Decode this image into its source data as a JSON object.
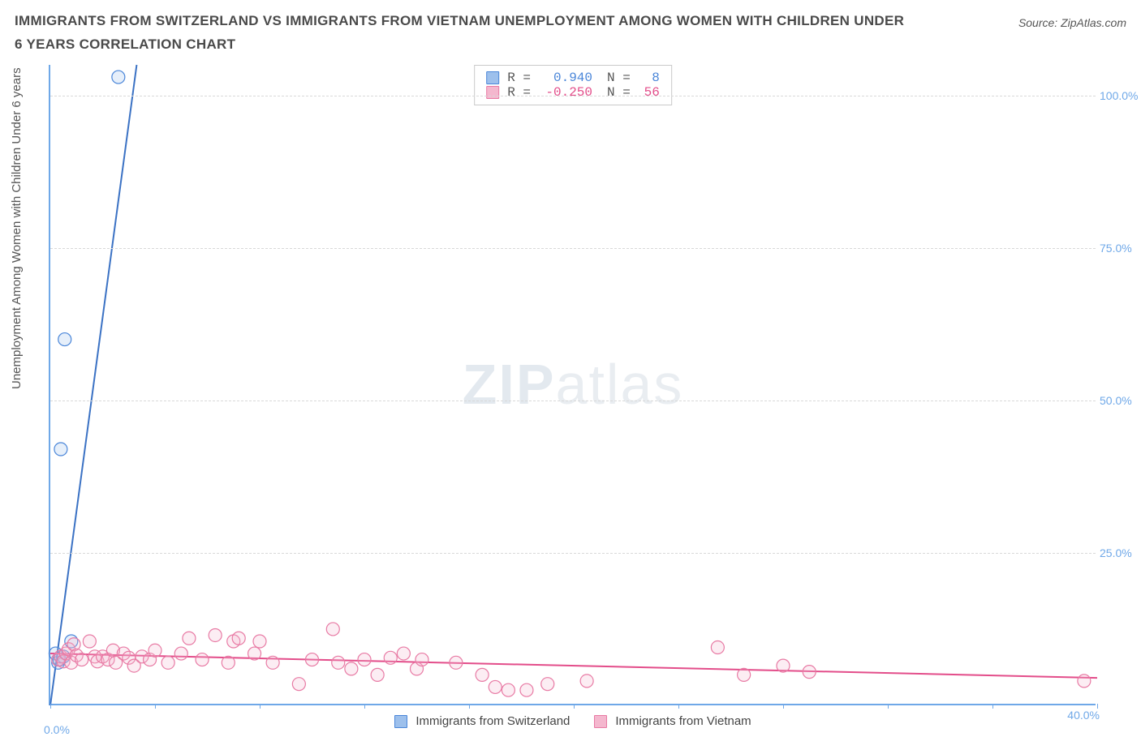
{
  "title": "IMMIGRANTS FROM SWITZERLAND VS IMMIGRANTS FROM VIETNAM UNEMPLOYMENT AMONG WOMEN WITH CHILDREN UNDER 6 YEARS CORRELATION CHART",
  "source_label": "Source: ZipAtlas.com",
  "y_axis_label": "Unemployment Among Women with Children Under 6 years",
  "watermark": {
    "bold": "ZIP",
    "light": "atlas"
  },
  "chart": {
    "type": "scatter-with-trendlines",
    "background_color": "#ffffff",
    "axis_color": "#6fa8e8",
    "grid_color": "#d9d9d9",
    "grid_dash": "4,4",
    "xlim": [
      0,
      40
    ],
    "ylim": [
      0,
      105
    ],
    "x_ticks": [
      0,
      4,
      8,
      12,
      16,
      20,
      24,
      28,
      32,
      36,
      40
    ],
    "x_tick_labels": {
      "0": "0.0%",
      "40": "40.0%"
    },
    "y_ticks": [
      25,
      50,
      75,
      100
    ],
    "y_tick_labels": {
      "25": "25.0%",
      "50": "50.0%",
      "75": "75.0%",
      "100": "100.0%"
    },
    "tick_label_color": "#6fa8e8",
    "tick_label_fontsize": 14,
    "marker_radius": 8,
    "marker_stroke_width": 1.2,
    "marker_fill_opacity": 0.25,
    "trend_line_width": 2,
    "series": [
      {
        "id": "switzerland",
        "label": "Immigrants from Switzerland",
        "stroke": "#4a86d9",
        "fill": "#9dc0ec",
        "line_color": "#3b72c4",
        "stats": {
          "R": "0.940",
          "N": "8"
        },
        "trend": {
          "x1": 0,
          "y1": 0,
          "x2": 3.3,
          "y2": 105
        },
        "points": [
          [
            0.2,
            8.5
          ],
          [
            0.3,
            7.0
          ],
          [
            0.35,
            7.5
          ],
          [
            0.5,
            8.0
          ],
          [
            0.8,
            10.5
          ],
          [
            0.4,
            42.0
          ],
          [
            0.55,
            60.0
          ],
          [
            2.6,
            103.0
          ]
        ]
      },
      {
        "id": "vietnam",
        "label": "Immigrants from Vietnam",
        "stroke": "#e87aa4",
        "fill": "#f4b7ce",
        "line_color": "#e34d8a",
        "stats": {
          "R": "-0.250",
          "N": "56"
        },
        "trend": {
          "x1": 0,
          "y1": 8.5,
          "x2": 40,
          "y2": 4.5
        },
        "points": [
          [
            0.3,
            7.5
          ],
          [
            0.4,
            8.0
          ],
          [
            0.5,
            7.2
          ],
          [
            0.6,
            8.5
          ],
          [
            0.7,
            9.2
          ],
          [
            0.8,
            7.0
          ],
          [
            0.9,
            10.0
          ],
          [
            1.0,
            8.2
          ],
          [
            1.2,
            7.5
          ],
          [
            1.5,
            10.5
          ],
          [
            1.7,
            8.0
          ],
          [
            1.8,
            7.2
          ],
          [
            2.0,
            8.0
          ],
          [
            2.2,
            7.5
          ],
          [
            2.4,
            9.0
          ],
          [
            2.5,
            7.0
          ],
          [
            2.8,
            8.5
          ],
          [
            3.0,
            7.8
          ],
          [
            3.2,
            6.5
          ],
          [
            3.5,
            8.0
          ],
          [
            3.8,
            7.5
          ],
          [
            4.0,
            9.0
          ],
          [
            4.5,
            7.0
          ],
          [
            5.0,
            8.5
          ],
          [
            5.3,
            11.0
          ],
          [
            5.8,
            7.5
          ],
          [
            6.3,
            11.5
          ],
          [
            6.8,
            7.0
          ],
          [
            7.0,
            10.5
          ],
          [
            7.2,
            11.0
          ],
          [
            7.8,
            8.5
          ],
          [
            8.0,
            10.5
          ],
          [
            8.5,
            7.0
          ],
          [
            9.5,
            3.5
          ],
          [
            10.0,
            7.5
          ],
          [
            10.8,
            12.5
          ],
          [
            11.0,
            7.0
          ],
          [
            11.5,
            6.0
          ],
          [
            12.0,
            7.5
          ],
          [
            12.5,
            5.0
          ],
          [
            13.0,
            7.8
          ],
          [
            13.5,
            8.5
          ],
          [
            14.0,
            6.0
          ],
          [
            14.2,
            7.5
          ],
          [
            15.5,
            7.0
          ],
          [
            16.5,
            5.0
          ],
          [
            17.0,
            3.0
          ],
          [
            17.5,
            2.5
          ],
          [
            18.2,
            2.5
          ],
          [
            19.0,
            3.5
          ],
          [
            20.5,
            4.0
          ],
          [
            25.5,
            9.5
          ],
          [
            26.5,
            5.0
          ],
          [
            28.0,
            6.5
          ],
          [
            29.0,
            5.5
          ],
          [
            39.5,
            4.0
          ]
        ]
      }
    ],
    "stats_box": {
      "border_color": "#c9c9c9",
      "font": "Courier New",
      "fontsize": 16,
      "rows": [
        {
          "swatch_fill": "#9dc0ec",
          "swatch_stroke": "#4a86d9",
          "text_color": "#4a86d9",
          "r_label": "R =",
          "r_val": "0.940",
          "n_label": "N =",
          "n_val": "8",
          "n_pad": "  "
        },
        {
          "swatch_fill": "#f4b7ce",
          "swatch_stroke": "#e87aa4",
          "text_color": "#e34d8a",
          "r_label": "R =",
          "r_val": "-0.250",
          "n_label": "N =",
          "n_val": "56",
          "n_pad": " "
        }
      ]
    }
  }
}
